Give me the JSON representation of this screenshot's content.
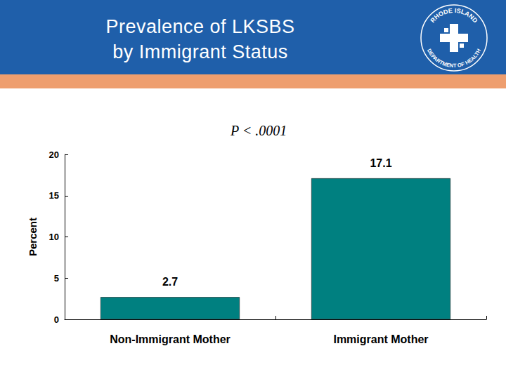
{
  "header": {
    "logo": {
      "top_text": "RHODE ISLAND",
      "bottom_text": "DEPARTMENT OF HEALTH"
    }
  },
  "chart_data": {
    "type": "bar",
    "title": "Prevalence of LKSBS\nby Immigrant Status",
    "annotation": "P < .0001",
    "ylabel": "Percent",
    "categories": [
      "Non-Immigrant Mother",
      "Immigrant Mother"
    ],
    "values": [
      2.7,
      17.1
    ],
    "color": "#008080",
    "ylim": [
      0,
      20
    ],
    "yticks": [
      0,
      5,
      10,
      15,
      20
    ],
    "grid": false,
    "data_labels": true
  }
}
